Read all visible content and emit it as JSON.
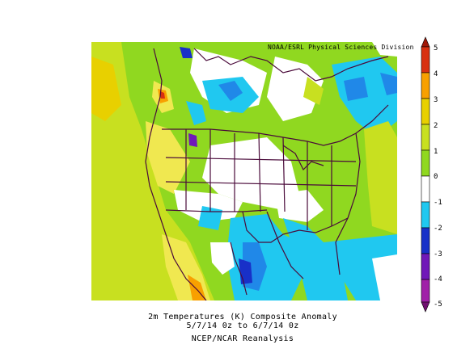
{
  "credit": "NOAA/ESRL Physical Sciences Division",
  "caption": {
    "line1": "2m Temperatures (K)   Composite Anomaly",
    "line2": "5/7/14 0z  to 6/7/14 0z",
    "line3": "NCEP/NCAR Reanalysis"
  },
  "colorbar": {
    "labels": [
      "5",
      "4",
      "3",
      "2",
      "1",
      "0",
      "-1",
      "-2",
      "-3",
      "-4",
      "-5"
    ],
    "colors": [
      "#a01808",
      "#e83808",
      "#f89000",
      "#e8c800",
      "#e8f020",
      "#90d820",
      "#ffffff",
      "#20c8f0",
      "#2088e8",
      "#1830c8",
      "#7018b8",
      "#a020a8",
      "#701070"
    ]
  },
  "colors": {
    "green": "#90d820",
    "yellowgreen": "#c8e020",
    "yellow": "#e8d000",
    "light_yellow": "#f0e850",
    "orange": "#f8a000",
    "red": "#d83010",
    "cyan": "#20c8f0",
    "blue": "#2088e8",
    "navy": "#1830c8",
    "purple": "#7018b8",
    "boundary": "#4a0a3a"
  }
}
